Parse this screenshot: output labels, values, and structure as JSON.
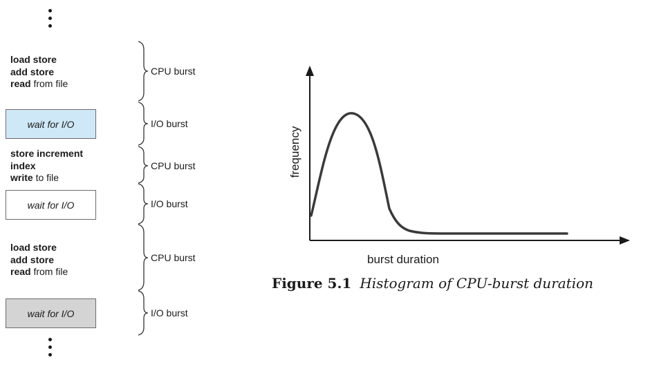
{
  "bursts": {
    "cpu1": {
      "lines": [
        {
          "bold": "load store",
          "rest": ""
        },
        {
          "bold": "add store",
          "rest": ""
        },
        {
          "bold": "read",
          "rest": " from file"
        }
      ],
      "label": "CPU burst"
    },
    "io1": {
      "text": "wait for I/O",
      "label": "I/O burst",
      "fill": "#cfe8f7"
    },
    "cpu2": {
      "lines": [
        {
          "bold": "store increment",
          "rest": ""
        },
        {
          "bold": "index",
          "rest": ""
        },
        {
          "bold": "write",
          "rest": " to file"
        }
      ],
      "label": "CPU burst"
    },
    "io2": {
      "text": "wait for I/O",
      "label": "I/O burst",
      "fill": "#ffffff"
    },
    "cpu3": {
      "lines": [
        {
          "bold": "load store",
          "rest": ""
        },
        {
          "bold": "add store",
          "rest": ""
        },
        {
          "bold": "read",
          "rest": " from file"
        }
      ],
      "label": "CPU burst"
    },
    "io3": {
      "text": "wait for I/O",
      "label": "I/O burst",
      "fill": "#d4d4d4"
    }
  },
  "chart": {
    "xlabel": "burst duration",
    "ylabel": "frequency"
  },
  "caption": {
    "number": "Figure 5.1",
    "text": "Histogram of CPU-burst duration"
  }
}
